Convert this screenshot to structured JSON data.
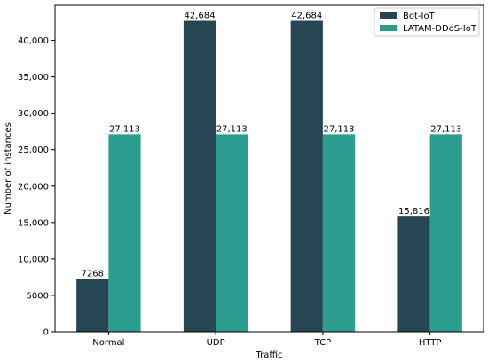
{
  "chart_data": {
    "type": "bar",
    "title": "",
    "xlabel": "Traffic",
    "ylabel": "Number of instances",
    "categories": [
      "Normal",
      "UDP",
      "TCP",
      "HTTP"
    ],
    "series": [
      {
        "name": "Bot-IoT",
        "color": "#264653",
        "values": [
          7268,
          42684,
          42684,
          15816
        ],
        "labels": [
          "7268",
          "42,684",
          "42,684",
          "15,816"
        ]
      },
      {
        "name": "LATAM-DDoS-IoT",
        "color": "#2a9d8f",
        "values": [
          27113,
          27113,
          27113,
          27113
        ],
        "labels": [
          "27,113",
          "27,113",
          "27,113",
          "27,113"
        ]
      }
    ],
    "ylim": [
      0,
      44818
    ],
    "yticks": [
      0,
      5000,
      10000,
      15000,
      20000,
      25000,
      30000,
      35000,
      40000
    ],
    "ytick_labels": [
      "0",
      "5000",
      "10,000",
      "15,000",
      "20,000",
      "25,000",
      "30,000",
      "35,000",
      "40,000"
    ],
    "legend_position": "top-right",
    "grid": false
  }
}
